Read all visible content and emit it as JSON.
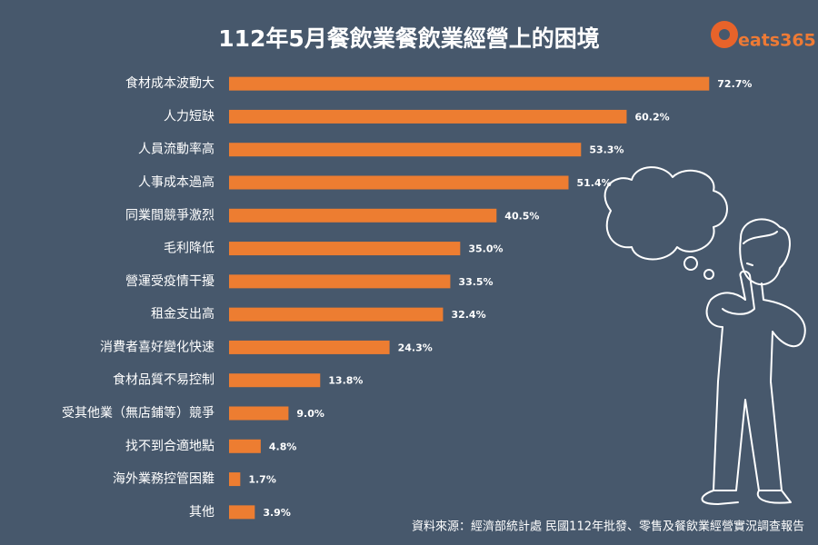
{
  "chart_data": {
    "type": "bar",
    "orientation": "horizontal",
    "title": "112年5月餐飲業餐飲業經營上的困境",
    "logo": "eats365",
    "source": "資料來源：經濟部統計處 民國112年批發、零售及餐飲業經營實況調查報告",
    "categories": [
      "食材成本波動大",
      "人力短缺",
      "人員流動率高",
      "人事成本過高",
      "同業間競爭激烈",
      "毛利降低",
      "營運受疫情干擾",
      "租金支出高",
      "消費者喜好變化快速",
      "食材品質不易控制",
      "受其他業（無店鋪等）競爭",
      "找不到合適地點",
      "海外業務控管困難",
      "其他"
    ],
    "values": [
      72.7,
      60.2,
      53.3,
      51.4,
      40.5,
      35.0,
      33.5,
      32.4,
      24.3,
      13.8,
      9.0,
      4.8,
      1.7,
      3.9
    ],
    "value_labels": [
      "72.7%",
      "60.2%",
      "53.3%",
      "51.4%",
      "40.5%",
      "35.0%",
      "33.5%",
      "32.4%",
      "24.3%",
      "13.8%",
      "9.0%",
      "4.8%",
      "1.7%",
      "3.9%"
    ],
    "color": "#ed7d31",
    "xlim": [
      0,
      75
    ]
  }
}
